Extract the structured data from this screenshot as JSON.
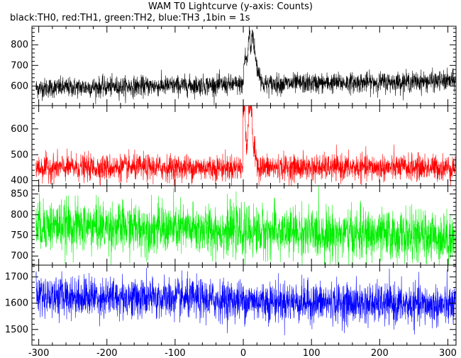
{
  "title": "WAM T0 Lightcurve (y-axis: Counts)",
  "subtitle": "black:TH0, red:TH1, green:TH2, blue:TH3 ,1bin = 1s",
  "chart_data": {
    "type": "line",
    "title": "WAM T0 Lightcurve (y-axis: Counts)",
    "subtitle": "black:TH0, red:TH1, green:TH2, blue:TH3 ,1bin = 1s",
    "xlim": [
      -310,
      312
    ],
    "x_ticks": [
      -300,
      -200,
      -100,
      0,
      100,
      200,
      300
    ],
    "x_tick_labels": [
      "-300",
      "-200",
      "-100",
      "0",
      "100",
      "200",
      "300"
    ],
    "bin_seconds": 1,
    "grid": false,
    "panels": [
      {
        "name": "TH0",
        "color": "#000000",
        "ylim": [
          505,
          890
        ],
        "y_ticks": [
          600,
          700,
          800
        ],
        "y_tick_labels": [
          "600",
          "700",
          "800"
        ],
        "baseline_start": 590,
        "baseline_end": 625,
        "noise": 24,
        "burst": [
          {
            "t": 1,
            "value": 700
          },
          {
            "t": 3,
            "value": 740
          },
          {
            "t": 6,
            "value": 720
          },
          {
            "t": 9,
            "value": 880
          },
          {
            "t": 11,
            "value": 760
          },
          {
            "t": 13,
            "value": 870
          },
          {
            "t": 15,
            "value": 820
          },
          {
            "t": 17,
            "value": 760
          },
          {
            "t": 20,
            "value": 690
          },
          {
            "t": 25,
            "value": 650
          }
        ]
      },
      {
        "name": "TH1",
        "color": "#ff0000",
        "ylim": [
          380,
          690
        ],
        "y_ticks": [
          400,
          500,
          600
        ],
        "y_tick_labels": [
          "400",
          "500",
          "600"
        ],
        "baseline_start": 450,
        "baseline_end": 450,
        "noise": 25,
        "burst": [
          {
            "t": 0,
            "value": 650
          },
          {
            "t": 2,
            "value": 700
          },
          {
            "t": 5,
            "value": 520
          },
          {
            "t": 9,
            "value": 700
          },
          {
            "t": 12,
            "value": 680
          },
          {
            "t": 15,
            "value": 520
          },
          {
            "t": 20,
            "value": 480
          }
        ]
      },
      {
        "name": "TH2",
        "color": "#00ee00",
        "ylim": [
          678,
          870
        ],
        "y_ticks": [
          700,
          750,
          800,
          850
        ],
        "y_tick_labels": [
          "700",
          "750",
          "800",
          "850"
        ],
        "baseline_start": 775,
        "baseline_end": 745,
        "noise": 30
      },
      {
        "name": "TH3",
        "color": "#0000ff",
        "ylim": [
          1440,
          1745
        ],
        "y_ticks": [
          1500,
          1600,
          1700
        ],
        "y_tick_labels": [
          "1500",
          "1600",
          "1700"
        ],
        "baseline_start": 1630,
        "baseline_end": 1590,
        "noise": 38
      }
    ]
  }
}
